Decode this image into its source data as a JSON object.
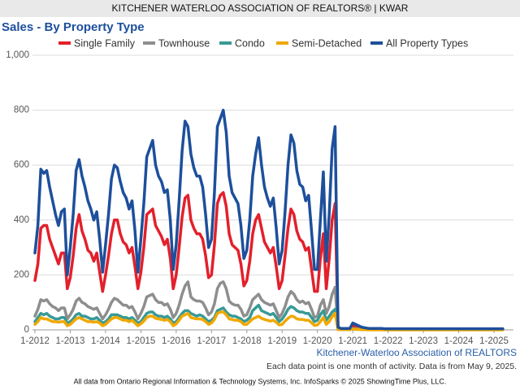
{
  "header": "KITCHENER WATERLOO ASSOCIATION OF REALTORS® | KWAR",
  "chart_data": {
    "type": "line",
    "title": "Sales - By Property Type",
    "source_label": "Kitchener-Waterloo Association of REALTORS",
    "note": "Each data point is one month of activity. Data is from May 9, 2025.",
    "categories": [
      "1-2012",
      null,
      null,
      null,
      null,
      null,
      null,
      null,
      null,
      null,
      null,
      null,
      "1-2013",
      null,
      null,
      null,
      null,
      null,
      null,
      null,
      null,
      null,
      null,
      null,
      "1-2014",
      null,
      null,
      null,
      null,
      null,
      null,
      null,
      null,
      null,
      null,
      null,
      "1-2015",
      null,
      null,
      null,
      null,
      null,
      null,
      null,
      null,
      null,
      null,
      null,
      "1-2016",
      null,
      null,
      null,
      null,
      null,
      null,
      null,
      null,
      null,
      null,
      null,
      "1-2017",
      null,
      null,
      null,
      null,
      null,
      null,
      null,
      null,
      null,
      null,
      null,
      "1-2018",
      null,
      null,
      null,
      null,
      null,
      null,
      null,
      null,
      null,
      null,
      null,
      "1-2019",
      null,
      null,
      null,
      null,
      null,
      null,
      null,
      null,
      null,
      null,
      null,
      "1-2020",
      null,
      null,
      null,
      null,
      null,
      null,
      null,
      null,
      null,
      null,
      null,
      "1-2021",
      null,
      null,
      null,
      null,
      null,
      null,
      null,
      null,
      null,
      null,
      null,
      "1-2022",
      null,
      null,
      null,
      null,
      null,
      null,
      null,
      null,
      null,
      null,
      null,
      "1-2023",
      null,
      null,
      null,
      null,
      null,
      null,
      null,
      null,
      null,
      null,
      null,
      "1-2024",
      null,
      null,
      null,
      null,
      null,
      null,
      null,
      null,
      null,
      null,
      null,
      "1-2025",
      null,
      null,
      null
    ],
    "series": [
      {
        "name": "Single Family",
        "color": "#e3202b",
        "values": [
          180,
          240,
          370,
          380,
          380,
          330,
          300,
          270,
          240,
          280,
          280,
          150,
          190,
          270,
          370,
          420,
          360,
          330,
          290,
          280,
          250,
          280,
          210,
          140,
          200,
          270,
          350,
          400,
          400,
          350,
          320,
          310,
          280,
          300,
          230,
          150,
          210,
          300,
          420,
          430,
          440,
          380,
          360,
          340,
          310,
          330,
          260,
          150,
          200,
          300,
          410,
          480,
          490,
          400,
          370,
          350,
          350,
          330,
          270,
          190,
          200,
          310,
          460,
          490,
          500,
          450,
          350,
          310,
          300,
          290,
          240,
          160,
          180,
          250,
          350,
          400,
          420,
          370,
          320,
          300,
          280,
          300,
          230,
          150,
          180,
          270,
          370,
          440,
          420,
          360,
          330,
          320,
          290,
          300,
          220,
          140,
          140,
          260,
          350,
          150,
          260,
          400,
          460,
          5,
          3,
          3,
          3,
          3,
          15,
          12,
          9,
          6,
          5,
          4,
          3,
          3,
          3,
          3,
          3,
          2,
          2,
          2,
          2,
          2,
          2,
          2,
          2,
          2,
          2,
          2,
          2,
          2,
          2,
          2,
          2,
          2,
          2,
          2,
          2,
          2,
          2,
          2,
          2,
          2,
          2,
          2,
          2,
          2,
          2,
          2,
          2,
          2,
          2,
          2,
          2,
          2,
          2,
          2,
          2,
          2
        ]
      },
      {
        "name": "Townhouse",
        "color": "#8e8e8e",
        "values": [
          50,
          75,
          110,
          105,
          110,
          95,
          85,
          80,
          70,
          80,
          80,
          40,
          55,
          75,
          105,
          115,
          100,
          95,
          85,
          80,
          75,
          80,
          60,
          40,
          55,
          75,
          100,
          115,
          110,
          100,
          90,
          90,
          80,
          85,
          65,
          40,
          60,
          85,
          120,
          125,
          130,
          110,
          100,
          100,
          90,
          95,
          75,
          45,
          60,
          90,
          130,
          160,
          175,
          120,
          110,
          105,
          105,
          100,
          80,
          55,
          65,
          95,
          150,
          170,
          175,
          150,
          105,
          95,
          90,
          90,
          75,
          50,
          55,
          80,
          110,
          120,
          130,
          110,
          100,
          95,
          90,
          95,
          70,
          45,
          60,
          85,
          120,
          140,
          130,
          110,
          100,
          105,
          95,
          100,
          75,
          45,
          50,
          90,
          110,
          60,
          85,
          130,
          155,
          3,
          2,
          2,
          2,
          2,
          5,
          4,
          3,
          2,
          2,
          1,
          1,
          1,
          1,
          1,
          1,
          1,
          1,
          1,
          1,
          1,
          1,
          1,
          1,
          1,
          1,
          1,
          1,
          1,
          1,
          1,
          1,
          1,
          1,
          1,
          1,
          1,
          1,
          1,
          1,
          1,
          1,
          1,
          1,
          1,
          1,
          1,
          1,
          1,
          1,
          1,
          1,
          1,
          1,
          1,
          1,
          1
        ]
      },
      {
        "name": "Condo",
        "color": "#389a96",
        "values": [
          30,
          45,
          60,
          55,
          60,
          50,
          45,
          40,
          40,
          45,
          45,
          25,
          30,
          40,
          55,
          60,
          50,
          50,
          45,
          40,
          40,
          45,
          35,
          25,
          30,
          40,
          55,
          55,
          55,
          50,
          45,
          45,
          40,
          45,
          35,
          25,
          30,
          45,
          60,
          65,
          65,
          55,
          50,
          50,
          45,
          50,
          40,
          25,
          30,
          45,
          60,
          70,
          70,
          60,
          55,
          50,
          55,
          50,
          40,
          30,
          35,
          45,
          70,
          75,
          80,
          65,
          55,
          50,
          50,
          45,
          40,
          30,
          35,
          45,
          70,
          80,
          90,
          70,
          65,
          60,
          55,
          60,
          45,
          30,
          40,
          55,
          75,
          85,
          80,
          70,
          65,
          65,
          60,
          60,
          45,
          30,
          35,
          55,
          70,
          35,
          50,
          65,
          75,
          2,
          1,
          1,
          1,
          1,
          3,
          2,
          2,
          1,
          1,
          1,
          1,
          1,
          1,
          1,
          1,
          1,
          1,
          1,
          1,
          1,
          1,
          1,
          1,
          1,
          1,
          1,
          1,
          1,
          1,
          1,
          1,
          1,
          1,
          1,
          1,
          1,
          1,
          1,
          1,
          1,
          1,
          1,
          1,
          1,
          1,
          1,
          1,
          1,
          1,
          1,
          1,
          1,
          1,
          1,
          1,
          1
        ]
      },
      {
        "name": "Semi-Detached",
        "color": "#f0a800",
        "values": [
          20,
          30,
          45,
          40,
          40,
          35,
          30,
          30,
          28,
          30,
          30,
          15,
          20,
          30,
          40,
          45,
          40,
          35,
          30,
          30,
          28,
          30,
          25,
          15,
          20,
          30,
          40,
          45,
          45,
          40,
          35,
          35,
          30,
          35,
          25,
          15,
          22,
          32,
          45,
          50,
          50,
          42,
          40,
          38,
          35,
          38,
          30,
          15,
          22,
          35,
          50,
          55,
          60,
          45,
          42,
          40,
          40,
          38,
          30,
          20,
          25,
          38,
          60,
          65,
          65,
          55,
          40,
          38,
          35,
          35,
          30,
          20,
          20,
          30,
          40,
          45,
          50,
          42,
          38,
          35,
          32,
          35,
          28,
          18,
          20,
          32,
          42,
          50,
          48,
          40,
          38,
          38,
          35,
          35,
          26,
          16,
          18,
          30,
          45,
          20,
          30,
          48,
          60,
          1,
          1,
          1,
          1,
          1,
          3,
          2,
          2,
          1,
          1,
          0,
          0,
          0,
          0,
          0,
          0,
          0,
          0,
          0,
          0,
          0,
          0,
          0,
          0,
          0,
          0,
          0,
          0,
          0,
          0,
          0,
          0,
          0,
          0,
          0,
          0,
          0,
          0,
          0,
          0,
          0,
          0,
          0,
          0,
          0,
          0,
          0,
          0,
          0,
          0,
          0,
          0,
          0,
          0,
          0,
          0,
          0
        ]
      },
      {
        "name": "All Property Types",
        "color": "#1d4f9c",
        "values": [
          280,
          380,
          585,
          570,
          580,
          520,
          470,
          420,
          380,
          430,
          440,
          200,
          300,
          420,
          580,
          620,
          560,
          520,
          470,
          440,
          400,
          430,
          330,
          210,
          310,
          420,
          550,
          600,
          590,
          540,
          500,
          480,
          440,
          470,
          360,
          210,
          330,
          460,
          630,
          660,
          690,
          600,
          560,
          540,
          500,
          510,
          400,
          220,
          310,
          470,
          650,
          760,
          740,
          640,
          590,
          560,
          560,
          520,
          420,
          300,
          330,
          500,
          740,
          770,
          800,
          720,
          560,
          500,
          480,
          460,
          380,
          260,
          290,
          400,
          560,
          640,
          700,
          600,
          520,
          480,
          450,
          480,
          370,
          240,
          290,
          430,
          600,
          710,
          680,
          580,
          530,
          520,
          470,
          490,
          360,
          220,
          220,
          400,
          575,
          250,
          420,
          660,
          740,
          10,
          5,
          5,
          5,
          5,
          25,
          20,
          15,
          10,
          8,
          6,
          5,
          5,
          5,
          5,
          5,
          4,
          4,
          4,
          4,
          4,
          4,
          4,
          4,
          4,
          4,
          4,
          4,
          4,
          4,
          4,
          4,
          4,
          4,
          4,
          4,
          4,
          4,
          4,
          4,
          4,
          4,
          4,
          4,
          4,
          4,
          4,
          4,
          4,
          4,
          4,
          4,
          4,
          4,
          4,
          4,
          4
        ]
      }
    ],
    "ylim": [
      0,
      1000
    ],
    "yticks": [
      0,
      200,
      400,
      600,
      800,
      {
        "value": 1000,
        "label": "1,000"
      }
    ],
    "grid": true
  },
  "footer": "All data from Ontario Regional Information & Technology Systems, Inc. InfoSparks © 2025 ShowingTime Plus, LLC."
}
